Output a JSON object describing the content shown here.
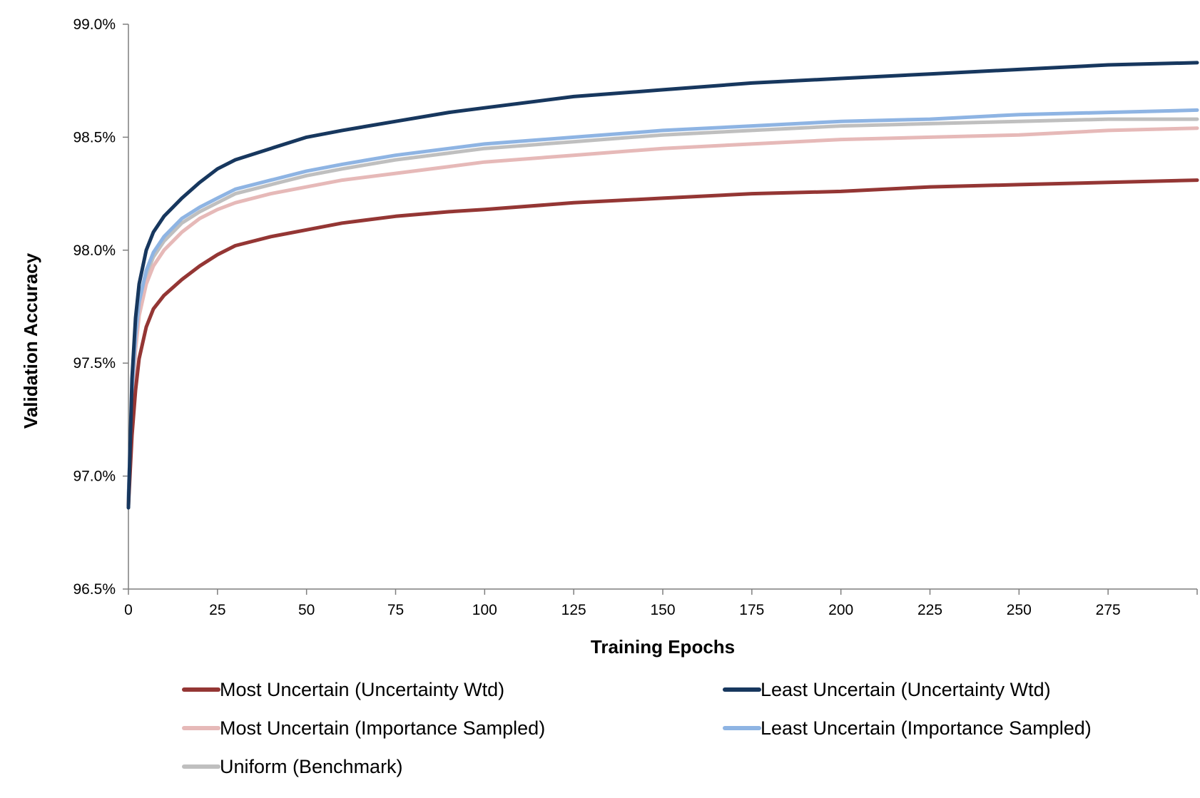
{
  "chart_data": {
    "type": "line",
    "title": "",
    "xlabel": "Training Epochs",
    "ylabel": "Validation Accuracy",
    "xlim": [
      0,
      300
    ],
    "ylim": [
      96.5,
      99.0
    ],
    "x_ticks": [
      0,
      25,
      50,
      75,
      100,
      125,
      150,
      175,
      200,
      225,
      250,
      275
    ],
    "x_tick_labels": [
      "0",
      "25",
      "50",
      "75",
      "100",
      "125",
      "150",
      "175",
      "200",
      "225",
      "250",
      "275"
    ],
    "y_ticks": [
      96.5,
      97.0,
      97.5,
      98.0,
      98.5,
      99.0
    ],
    "y_tick_labels": [
      "96.5%",
      "97.0%",
      "97.5%",
      "98.0%",
      "98.5%",
      "99.0%"
    ],
    "grid": false,
    "legend_position": "bottom",
    "x": [
      0,
      1,
      2,
      3,
      5,
      7,
      10,
      15,
      20,
      25,
      30,
      40,
      50,
      60,
      75,
      90,
      100,
      125,
      150,
      175,
      200,
      225,
      250,
      275,
      300
    ],
    "series": [
      {
        "name": "Most Uncertain (Uncertainty Wtd)",
        "color": "#943634",
        "values": [
          96.87,
          97.18,
          97.38,
          97.52,
          97.66,
          97.74,
          97.8,
          97.87,
          97.93,
          97.98,
          98.02,
          98.06,
          98.09,
          98.12,
          98.15,
          98.17,
          98.18,
          98.21,
          98.23,
          98.25,
          98.26,
          98.28,
          98.29,
          98.3,
          98.31
        ]
      },
      {
        "name": "Least Uncertain (Uncertainty Wtd)",
        "color": "#17375E",
        "values": [
          96.86,
          97.43,
          97.7,
          97.85,
          98.0,
          98.08,
          98.15,
          98.23,
          98.3,
          98.36,
          98.4,
          98.45,
          98.5,
          98.53,
          98.57,
          98.61,
          98.63,
          98.68,
          98.71,
          98.74,
          98.76,
          98.78,
          98.8,
          98.82,
          98.83
        ]
      },
      {
        "name": "Most Uncertain (Importance Sampled)",
        "color": "#E6B9B8",
        "values": [
          96.89,
          97.33,
          97.56,
          97.71,
          97.85,
          97.93,
          98.0,
          98.08,
          98.14,
          98.18,
          98.21,
          98.25,
          98.28,
          98.31,
          98.34,
          98.37,
          98.39,
          98.42,
          98.45,
          98.47,
          98.49,
          98.5,
          98.51,
          98.53,
          98.54
        ]
      },
      {
        "name": "Least Uncertain (Importance Sampled)",
        "color": "#8EB4E3",
        "values": [
          96.9,
          97.38,
          97.62,
          97.77,
          97.91,
          97.99,
          98.06,
          98.14,
          98.19,
          98.23,
          98.27,
          98.31,
          98.35,
          98.38,
          98.42,
          98.45,
          98.47,
          98.5,
          98.53,
          98.55,
          98.57,
          98.58,
          98.6,
          98.61,
          98.62
        ]
      },
      {
        "name": "Uniform (Benchmark)",
        "color": "#BFBFBF",
        "values": [
          96.9,
          97.36,
          97.6,
          97.75,
          97.89,
          97.97,
          98.04,
          98.12,
          98.17,
          98.21,
          98.25,
          98.29,
          98.33,
          98.36,
          98.4,
          98.43,
          98.45,
          98.48,
          98.51,
          98.53,
          98.55,
          98.56,
          98.57,
          98.58,
          98.58
        ]
      }
    ]
  }
}
